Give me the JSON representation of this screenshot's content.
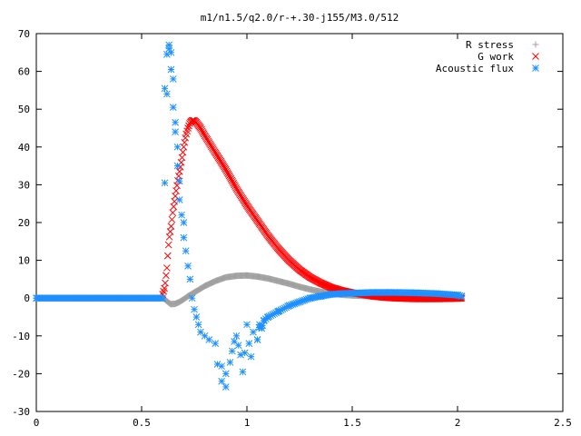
{
  "chart_data": {
    "type": "scatter",
    "title": "m1/n1.5/q2.0/r-+.30-j155/M3.0/512",
    "xlabel": "",
    "ylabel": "",
    "xlim": [
      0,
      2.5
    ],
    "ylim": [
      -30,
      70
    ],
    "xticks": [
      0,
      0.5,
      1,
      1.5,
      2,
      2.5
    ],
    "xtick_labels": [
      "0",
      "0.5",
      "1",
      "1.5",
      "2",
      "2.5"
    ],
    "yticks": [
      -30,
      -20,
      -10,
      0,
      10,
      20,
      30,
      40,
      50,
      60,
      70
    ],
    "ytick_labels": [
      "-30",
      "-20",
      "-10",
      "0",
      "10",
      "20",
      "30",
      "40",
      "50",
      "60",
      "70"
    ],
    "grid": false,
    "legend_position": "top-right",
    "series": [
      {
        "name": "R stress",
        "marker": "plus",
        "color": "#a0a0a0",
        "x": [
          0.0,
          0.1,
          0.2,
          0.3,
          0.4,
          0.5,
          0.6,
          0.61,
          0.62,
          0.63,
          0.64,
          0.66,
          0.68,
          0.7,
          0.72,
          0.75,
          0.78,
          0.8,
          0.85,
          0.9,
          0.95,
          1.0,
          1.05,
          1.1,
          1.15,
          1.2,
          1.25,
          1.3,
          1.35,
          1.4,
          1.45,
          1.5,
          1.55,
          1.6,
          1.65,
          1.7,
          1.8,
          1.9,
          2.0,
          2.02
        ],
        "y": [
          0,
          0,
          0,
          0,
          0,
          0,
          0,
          -0.3,
          -0.8,
          -1.3,
          -1.6,
          -1.5,
          -1.0,
          -0.3,
          0.5,
          1.5,
          2.5,
          3.2,
          4.5,
          5.5,
          5.9,
          6.0,
          5.7,
          5.2,
          4.5,
          3.8,
          3.0,
          2.3,
          1.7,
          1.2,
          0.9,
          0.7,
          0.6,
          0.6,
          0.7,
          0.8,
          0.9,
          0.7,
          0.4,
          0.3
        ]
      },
      {
        "name": "G work",
        "marker": "cross",
        "color": "#ff0000",
        "x": [
          0.6,
          0.61,
          0.615,
          0.62,
          0.625,
          0.63,
          0.64,
          0.65,
          0.66,
          0.67,
          0.68,
          0.69,
          0.7,
          0.71,
          0.72,
          0.73,
          0.74,
          0.75,
          0.76,
          0.78,
          0.8,
          0.85,
          0.9,
          0.95,
          1.0,
          1.05,
          1.1,
          1.15,
          1.2,
          1.25,
          1.3,
          1.35,
          1.4,
          1.45,
          1.5,
          1.55,
          1.6,
          1.65,
          1.7,
          1.8,
          1.9,
          2.0,
          2.02
        ],
        "y": [
          1,
          3,
          5.5,
          8,
          12,
          15.5,
          19,
          23.5,
          27,
          30.5,
          33.5,
          36.5,
          40,
          43,
          45,
          46.5,
          47,
          47,
          46.5,
          45,
          43,
          38.5,
          34,
          29,
          24.5,
          20.5,
          16.5,
          13,
          10,
          7.5,
          5.5,
          4,
          2.8,
          2,
          1.4,
          1,
          0.5,
          0.2,
          0,
          -0.2,
          -0.2,
          -0.1,
          0
        ]
      },
      {
        "name": "Acoustic flux",
        "marker": "star",
        "color": "#1e90ff",
        "x": [
          0.0,
          0.1,
          0.2,
          0.3,
          0.4,
          0.5,
          0.6,
          0.61,
          0.61,
          0.62,
          0.62,
          0.63,
          0.63,
          0.64,
          0.64,
          0.65,
          0.65,
          0.66,
          0.66,
          0.67,
          0.67,
          0.68,
          0.68,
          0.69,
          0.7,
          0.7,
          0.71,
          0.72,
          0.73,
          0.74,
          0.75,
          0.76,
          0.77,
          0.78,
          0.8,
          0.82,
          0.85,
          0.86,
          0.88,
          0.88,
          0.9,
          0.9,
          0.92,
          0.93,
          0.94,
          0.95,
          0.96,
          0.97,
          0.98,
          0.99,
          1.0,
          1.01,
          1.02,
          1.03,
          1.05,
          1.06,
          1.07,
          1.08,
          1.1,
          1.15,
          1.2,
          1.25,
          1.3,
          1.35,
          1.4,
          1.45,
          1.5,
          1.55,
          1.6,
          1.65,
          1.7,
          1.8,
          1.9,
          2.0,
          2.02
        ],
        "y": [
          0,
          0,
          0,
          0,
          0,
          0,
          0,
          30.5,
          55.5,
          54,
          64.5,
          67,
          66,
          65,
          60.5,
          58,
          50.5,
          46.5,
          44,
          40,
          35,
          31,
          26,
          22,
          20,
          16,
          12.5,
          8.5,
          5,
          0,
          -3,
          -5,
          -7,
          -9,
          -10,
          -11,
          -12,
          -17.5,
          -18,
          -22,
          -23.5,
          -20,
          -17,
          -14,
          -11.5,
          -10,
          -12.5,
          -15,
          -19.5,
          -14.5,
          -7,
          -12,
          -15.5,
          -9,
          -11,
          -7,
          -8,
          -6,
          -5,
          -3.5,
          -2,
          -1,
          0,
          0.5,
          1,
          1.2,
          1.3,
          1.4,
          1.5,
          1.5,
          1.5,
          1.4,
          1.2,
          0.8,
          0.5
        ]
      }
    ]
  }
}
